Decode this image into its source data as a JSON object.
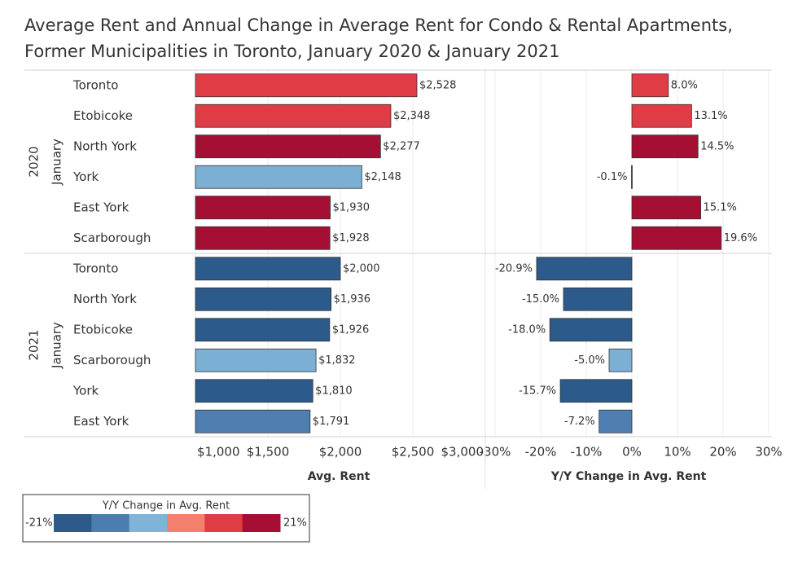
{
  "chart_data": {
    "type": "bar",
    "title": [
      "Average Rent and Annual Change in Average Rent for Condo & Rental Apartments,",
      "Former Municipalities in Toronto, January 2020 & January 2021"
    ],
    "groups": [
      {
        "year": "2020",
        "month": "January",
        "categories": [
          "Toronto",
          "Etobicoke",
          "North York",
          "York",
          "East York",
          "Scarborough"
        ],
        "rent": [
          2528,
          2348,
          2277,
          2148,
          1930,
          1928
        ],
        "rent_labels": [
          "$2,528",
          "$2,348",
          "$2,277",
          "$2,148",
          "$1,930",
          "$1,928"
        ],
        "change": [
          8.0,
          13.1,
          14.5,
          -0.1,
          15.1,
          19.6
        ],
        "change_labels": [
          "8.0%",
          "13.1%",
          "14.5%",
          "-0.1%",
          "15.1%",
          "19.6%"
        ],
        "colors": [
          "#e03c45",
          "#e03c45",
          "#a50f34",
          "#7bafd4",
          "#a50f34",
          "#a50f34"
        ]
      },
      {
        "year": "2021",
        "month": "January",
        "categories": [
          "Toronto",
          "North York",
          "Etobicoke",
          "Scarborough",
          "York",
          "East York"
        ],
        "rent": [
          2000,
          1936,
          1926,
          1832,
          1810,
          1791
        ],
        "rent_labels": [
          "$2,000",
          "$1,936",
          "$1,926",
          "$1,832",
          "$1,810",
          "$1,791"
        ],
        "change": [
          -20.9,
          -15.0,
          -18.0,
          -5.0,
          -15.7,
          -7.2
        ],
        "change_labels": [
          "-20.9%",
          "-15.0%",
          "-18.0%",
          "-5.0%",
          "-15.7%",
          "-7.2%"
        ],
        "colors": [
          "#2c5a8a",
          "#2c5a8a",
          "#2c5a8a",
          "#7bafd4",
          "#2c5a8a",
          "#4f7fb0"
        ]
      }
    ],
    "rent_axis": {
      "title": "Avg. Rent",
      "xlim": [
        1000,
        3000
      ],
      "xticks": [
        {
          "value": 1000,
          "label": "$1,000"
        },
        {
          "value": 1500,
          "label": "$1,500"
        },
        {
          "value": 2000,
          "label": "$2,000"
        },
        {
          "value": 2500,
          "label": "$2,500"
        },
        {
          "value": 3000,
          "label": "$3,000"
        }
      ]
    },
    "change_axis": {
      "title": "Y/Y Change in Avg. Rent",
      "xlim": [
        -30,
        30
      ],
      "xticks": [
        {
          "value": -30,
          "label": "-30%"
        },
        {
          "value": -20,
          "label": "-20%"
        },
        {
          "value": -10,
          "label": "-10%"
        },
        {
          "value": 0,
          "label": "0%"
        },
        {
          "value": 10,
          "label": "10%"
        },
        {
          "value": 20,
          "label": "20%"
        },
        {
          "value": 30,
          "label": "30%"
        }
      ]
    },
    "grid": true,
    "legend": {
      "title": "Y/Y Change in Avg. Rent",
      "min": {
        "value": -21,
        "label": "-21%"
      },
      "max": {
        "value": 21,
        "label": "21%"
      },
      "colors": [
        "#2c5a8a",
        "#4a7db0",
        "#80b3d9",
        "#f3806a",
        "#e03c45",
        "#a50f34"
      ]
    }
  }
}
